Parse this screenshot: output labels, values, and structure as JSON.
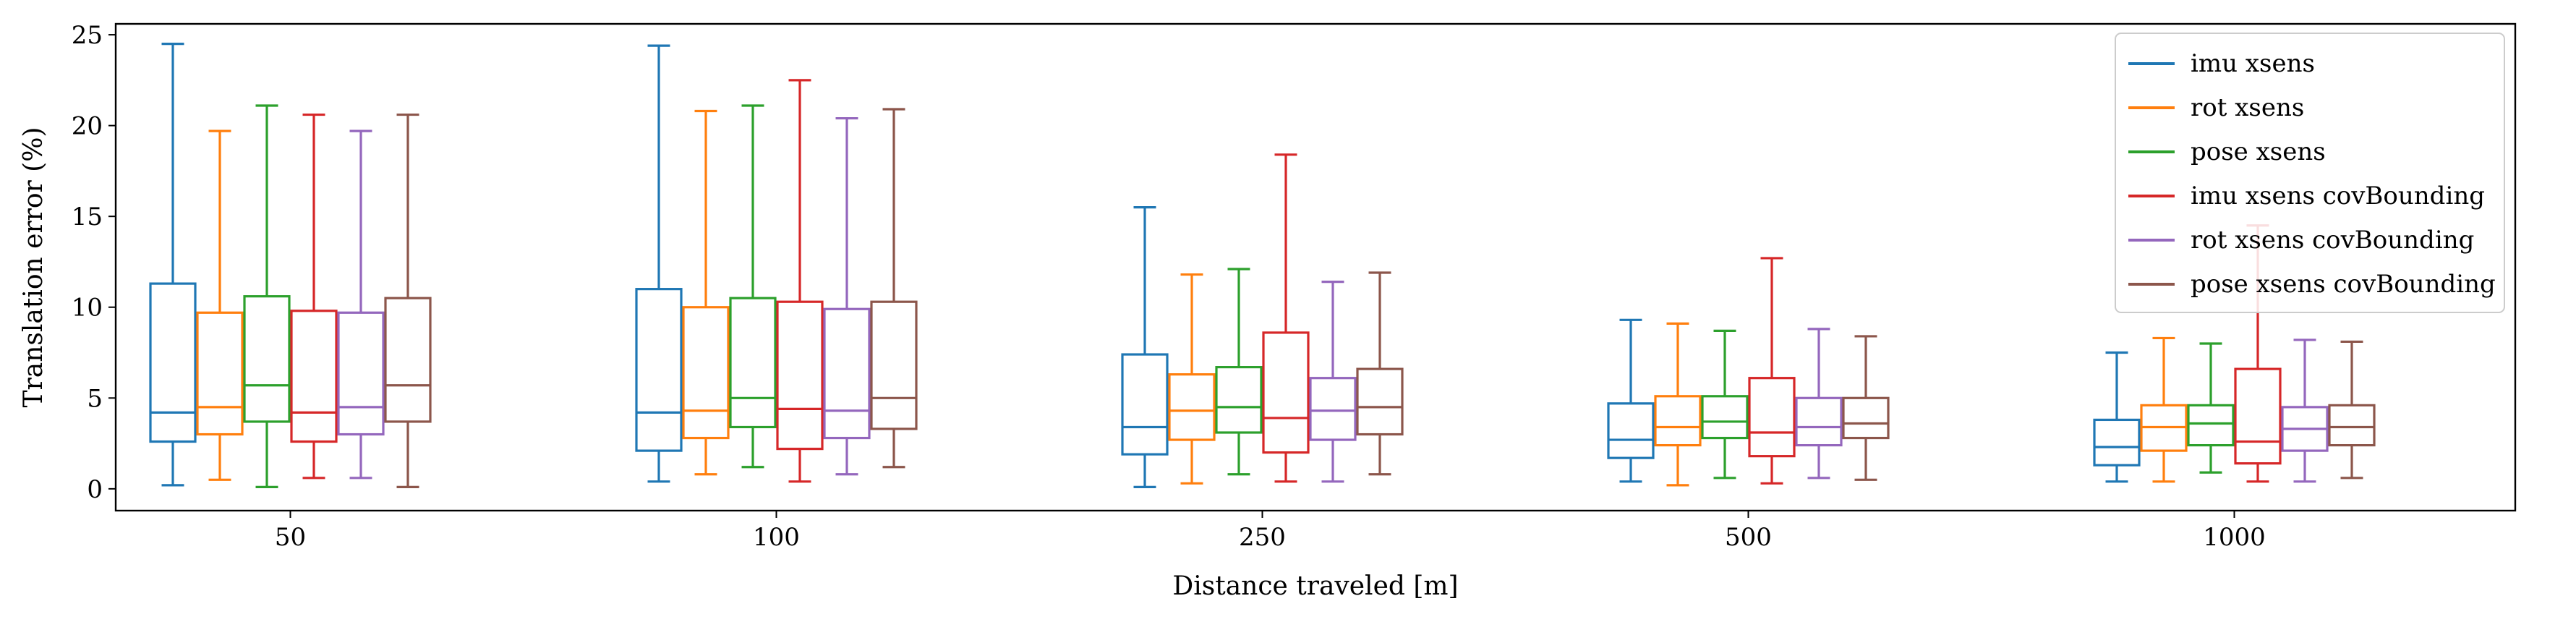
{
  "chart_data": {
    "type": "box",
    "xlabel": "Distance traveled [m]",
    "ylabel": "Translation error (%)",
    "ylim": [
      -1.2,
      25.6
    ],
    "yticks": [
      0,
      5,
      10,
      15,
      20,
      25
    ],
    "categories": [
      "50",
      "100",
      "250",
      "500",
      "1000"
    ],
    "legend_position": "top-right",
    "grid": false,
    "series": [
      {
        "name": "imu xsens",
        "color": "#1f77b4",
        "boxes": [
          {
            "whislo": 0.2,
            "q1": 2.6,
            "med": 4.2,
            "q3": 11.3,
            "whishi": 24.5
          },
          {
            "whislo": 0.4,
            "q1": 2.1,
            "med": 4.2,
            "q3": 11.0,
            "whishi": 24.4
          },
          {
            "whislo": 0.1,
            "q1": 1.9,
            "med": 3.4,
            "q3": 7.4,
            "whishi": 15.5
          },
          {
            "whislo": 0.4,
            "q1": 1.7,
            "med": 2.7,
            "q3": 4.7,
            "whishi": 9.3
          },
          {
            "whislo": 0.4,
            "q1": 1.3,
            "med": 2.3,
            "q3": 3.8,
            "whishi": 7.5
          }
        ]
      },
      {
        "name": "rot xsens",
        "color": "#ff7f0e",
        "boxes": [
          {
            "whislo": 0.5,
            "q1": 3.0,
            "med": 4.5,
            "q3": 9.7,
            "whishi": 19.7
          },
          {
            "whislo": 0.8,
            "q1": 2.8,
            "med": 4.3,
            "q3": 10.0,
            "whishi": 20.8
          },
          {
            "whislo": 0.3,
            "q1": 2.7,
            "med": 4.3,
            "q3": 6.3,
            "whishi": 11.8
          },
          {
            "whislo": 0.2,
            "q1": 2.4,
            "med": 3.4,
            "q3": 5.1,
            "whishi": 9.1
          },
          {
            "whislo": 0.4,
            "q1": 2.1,
            "med": 3.4,
            "q3": 4.6,
            "whishi": 8.3
          }
        ]
      },
      {
        "name": "pose xsens",
        "color": "#2ca02c",
        "boxes": [
          {
            "whislo": 0.1,
            "q1": 3.7,
            "med": 5.7,
            "q3": 10.6,
            "whishi": 21.1
          },
          {
            "whislo": 1.2,
            "q1": 3.4,
            "med": 5.0,
            "q3": 10.5,
            "whishi": 21.1
          },
          {
            "whislo": 0.8,
            "q1": 3.1,
            "med": 4.5,
            "q3": 6.7,
            "whishi": 12.1
          },
          {
            "whislo": 0.6,
            "q1": 2.8,
            "med": 3.7,
            "q3": 5.1,
            "whishi": 8.7
          },
          {
            "whislo": 0.9,
            "q1": 2.4,
            "med": 3.6,
            "q3": 4.6,
            "whishi": 8.0
          }
        ]
      },
      {
        "name": "imu xsens covBounding",
        "color": "#d62728",
        "boxes": [
          {
            "whislo": 0.6,
            "q1": 2.6,
            "med": 4.2,
            "q3": 9.8,
            "whishi": 20.6
          },
          {
            "whislo": 0.4,
            "q1": 2.2,
            "med": 4.4,
            "q3": 10.3,
            "whishi": 22.5
          },
          {
            "whislo": 0.4,
            "q1": 2.0,
            "med": 3.9,
            "q3": 8.6,
            "whishi": 18.4
          },
          {
            "whislo": 0.3,
            "q1": 1.8,
            "med": 3.1,
            "q3": 6.1,
            "whishi": 12.7
          },
          {
            "whislo": 0.4,
            "q1": 1.4,
            "med": 2.6,
            "q3": 6.6,
            "whishi": 14.5
          }
        ]
      },
      {
        "name": "rot xsens covBounding",
        "color": "#9467bd",
        "boxes": [
          {
            "whislo": 0.6,
            "q1": 3.0,
            "med": 4.5,
            "q3": 9.7,
            "whishi": 19.7
          },
          {
            "whislo": 0.8,
            "q1": 2.8,
            "med": 4.3,
            "q3": 9.9,
            "whishi": 20.4
          },
          {
            "whislo": 0.4,
            "q1": 2.7,
            "med": 4.3,
            "q3": 6.1,
            "whishi": 11.4
          },
          {
            "whislo": 0.6,
            "q1": 2.4,
            "med": 3.4,
            "q3": 5.0,
            "whishi": 8.8
          },
          {
            "whislo": 0.4,
            "q1": 2.1,
            "med": 3.3,
            "q3": 4.5,
            "whishi": 8.2
          }
        ]
      },
      {
        "name": "pose xsens covBounding",
        "color": "#8c564b",
        "boxes": [
          {
            "whislo": 0.1,
            "q1": 3.7,
            "med": 5.7,
            "q3": 10.5,
            "whishi": 20.6
          },
          {
            "whislo": 1.2,
            "q1": 3.3,
            "med": 5.0,
            "q3": 10.3,
            "whishi": 20.9
          },
          {
            "whislo": 0.8,
            "q1": 3.0,
            "med": 4.5,
            "q3": 6.6,
            "whishi": 11.9
          },
          {
            "whislo": 0.5,
            "q1": 2.8,
            "med": 3.6,
            "q3": 5.0,
            "whishi": 8.4
          },
          {
            "whislo": 0.6,
            "q1": 2.4,
            "med": 3.4,
            "q3": 4.6,
            "whishi": 8.1
          }
        ]
      }
    ]
  }
}
